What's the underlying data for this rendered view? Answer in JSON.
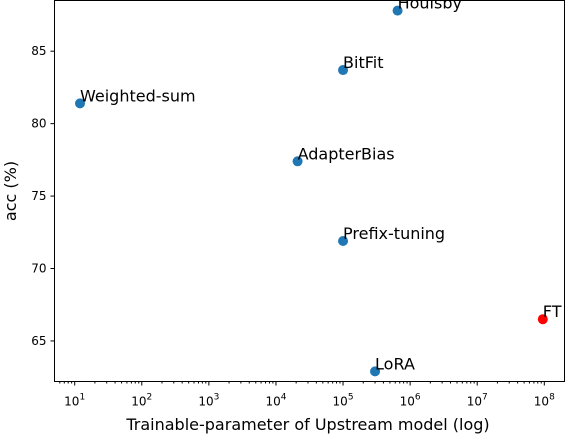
{
  "chart_data": {
    "type": "scatter",
    "title": "",
    "xlabel": "Trainable-parameter of Upstream model (log)",
    "ylabel": "acc (%)",
    "xscale": "log",
    "xlim": [
      5,
      200000000
    ],
    "ylim": [
      62.2,
      88.5
    ],
    "grid": false,
    "x_ticks": [
      {
        "value": 10,
        "base": "10",
        "exp": "1"
      },
      {
        "value": 100,
        "base": "10",
        "exp": "2"
      },
      {
        "value": 1000,
        "base": "10",
        "exp": "3"
      },
      {
        "value": 10000,
        "base": "10",
        "exp": "4"
      },
      {
        "value": 100000,
        "base": "10",
        "exp": "5"
      },
      {
        "value": 1000000,
        "base": "10",
        "exp": "6"
      },
      {
        "value": 10000000,
        "base": "10",
        "exp": "7"
      },
      {
        "value": 100000000,
        "base": "10",
        "exp": "8"
      }
    ],
    "y_ticks": [
      {
        "value": 65,
        "label": "65"
      },
      {
        "value": 70,
        "label": "70"
      },
      {
        "value": 75,
        "label": "75"
      },
      {
        "value": 80,
        "label": "80"
      },
      {
        "value": 85,
        "label": "85"
      }
    ],
    "points": [
      {
        "label": "Houlsby",
        "x": 650000,
        "y": 87.8,
        "color": "#1f77b4"
      },
      {
        "label": "BitFit",
        "x": 100000,
        "y": 83.7,
        "color": "#1f77b4"
      },
      {
        "label": "Weighted-sum",
        "x": 12,
        "y": 81.4,
        "color": "#1f77b4"
      },
      {
        "label": "AdapterBias",
        "x": 21000,
        "y": 77.4,
        "color": "#1f77b4"
      },
      {
        "label": "Prefix-tuning",
        "x": 100000,
        "y": 71.9,
        "color": "#1f77b4"
      },
      {
        "label": "FT",
        "x": 95000000,
        "y": 66.5,
        "color": "#ff0000"
      },
      {
        "label": "LoRA",
        "x": 300000,
        "y": 62.9,
        "color": "#1f77b4"
      }
    ]
  }
}
